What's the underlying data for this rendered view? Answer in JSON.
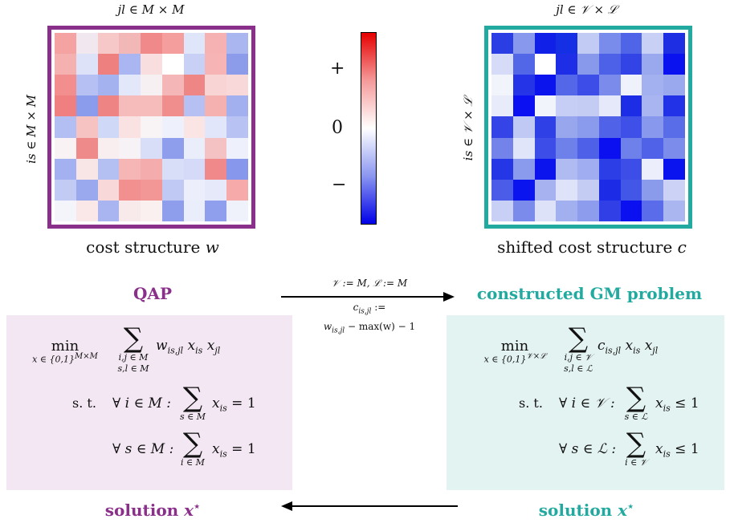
{
  "left_matrix": {
    "top_label": "jl ∈ M × M",
    "side_label": "is ∈ M × M",
    "caption_text": "cost structure ",
    "caption_var": "w",
    "frame_color": "#8a2f8a"
  },
  "right_matrix": {
    "top_label": "jl ∈ 𝒱 × ℒ",
    "side_label": "is ∈ 𝒱 × ℒ",
    "caption_text": "shifted cost structure ",
    "caption_var": "c",
    "frame_color": "#22aaa0"
  },
  "colorbar": {
    "plus": "+",
    "zero": "0",
    "minus": "−"
  },
  "qap": {
    "title": "QAP",
    "title_color": "#8a2f8a",
    "bg_color": "#f3e7f3",
    "min": "min",
    "min_sub": "x ∈ {0,1}",
    "min_sup": "M×M",
    "sum_sub1": "i,j ∈ M",
    "sum_sub2": "s,l ∈ M",
    "objective": "w",
    "obj_sub": "is,jl",
    "st": "s. t.",
    "c1_forall": "∀ i ∈ M :",
    "c1_sumsub": "s ∈ M",
    "c1_rhs": "= 1",
    "c2_forall": "∀ s ∈ M :",
    "c2_sumsub": "i ∈ M",
    "c2_rhs": "= 1"
  },
  "gm": {
    "title": "constructed GM problem",
    "title_color": "#22aaa0",
    "bg_color": "#e3f3f1",
    "min": "min",
    "min_sub": "x ∈ {0,1}",
    "min_sup": "𝒱×ℒ",
    "sum_sub1": "i,j ∈ 𝒱",
    "sum_sub2": "s,l ∈ ℒ",
    "objective": "c",
    "obj_sub": "is,jl",
    "st": "s. t.",
    "c1_forall": "∀ i ∈ 𝒱 :",
    "c1_sumsub": "s ∈ ℒ",
    "c1_rhs": "≤ 1",
    "c2_forall": "∀ s ∈ ℒ :",
    "c2_sumsub": "i ∈ 𝒱",
    "c2_rhs": "≤ 1"
  },
  "transform": {
    "line1": "𝒱 := M, ℒ := M",
    "line2": "c",
    "line2_sub": "is,jl",
    "line2_tail": " :=",
    "line3_var": "w",
    "line3_sub": "is,jl",
    "line3_tail": " − max(w) − 1"
  },
  "solutions": {
    "left": "solution ",
    "left_var": "x",
    "left_star": "⋆",
    "right": "solution ",
    "right_var": "x",
    "right_star": "⋆"
  },
  "left_cells": [
    "#f5a2a2",
    "#f0e8ee",
    "#f7c8c8",
    "#f2b7b7",
    "#f08a8a",
    "#f59e9e",
    "#e0e6fa",
    "#f6b2b2",
    "#aab6f0",
    "#f5b0b0",
    "#dde2f8",
    "#ee8080",
    "#a9b6f1",
    "#f8dede",
    "#ffffff",
    "#c8d0f5",
    "#f6b4b4",
    "#8c9ceb",
    "#f28e8e",
    "#b6c0f3",
    "#a5b2f0",
    "#e2e7fa",
    "#f6f0f3",
    "#f4b6b6",
    "#ee8686",
    "#f8d4d4",
    "#f8d8d8",
    "#f08080",
    "#8c9cec",
    "#ef8484",
    "#f6bcbc",
    "#f6bcbc",
    "#f08e8e",
    "#b6c0f3",
    "#f5b0b0",
    "#a3b0f0",
    "#b3bef2",
    "#f6c2c2",
    "#d0d8f7",
    "#fae2e2",
    "#f8f4f6",
    "#eef0fb",
    "#fae4e4",
    "#e2e6fa",
    "#b8c2f3",
    "#f8f2f4",
    "#ef8a8a",
    "#f8eef0",
    "#f6f2f5",
    "#d8def8",
    "#8e9dec",
    "#eaeefb",
    "#f4c2c2",
    "#eef1fb",
    "#a4b1f0",
    "#f8e6e6",
    "#b4bff2",
    "#f6b6b6",
    "#f4acac",
    "#d8ddf8",
    "#d4daf7",
    "#f08a8a",
    "#8797eb",
    "#c2cbf4",
    "#9aa8ee",
    "#f8d8d8",
    "#f29090",
    "#f29696",
    "#c0c9f4",
    "#eceffb",
    "#e6e9fa",
    "#f6aaaa",
    "#f4f5fb",
    "#fae8e8",
    "#a9b5f1",
    "#f8eaea",
    "#fbf0f0",
    "#8e9dec",
    "#eaeefb",
    "#8f9eed",
    "#f0f2fb"
  ],
  "right_cells": [
    "#2a3ee4",
    "#8898ec",
    "#1020e6",
    "#1530e4",
    "#c2cbf4",
    "#7a8ceb",
    "#5064e8",
    "#c8d0f5",
    "#1d2ee3",
    "#d6dcf8",
    "#5266e8",
    "#ffffff",
    "#1e2ee6",
    "#8899ec",
    "#4c60e8",
    "#3344e6",
    "#9aa8ee",
    "#0a12f0",
    "#f2f4fc",
    "#2434e6",
    "#0c14ee",
    "#5467e9",
    "#3c4ee7",
    "#7a8beb",
    "#f0f2fb",
    "#a4b1f0",
    "#9aa8ee",
    "#e8ebfa",
    "#0a10f2",
    "#f2f4fb",
    "#c6cef5",
    "#c4ccf4",
    "#e6e9fa",
    "#1d2de6",
    "#a9b5f1",
    "#2232e6",
    "#3444e6",
    "#c0c9f4",
    "#2e40e6",
    "#98a6ee",
    "#8a9aec",
    "#5063e8",
    "#3e50e7",
    "#8898ec",
    "#5a6de9",
    "#7383ea",
    "#e0e5f9",
    "#3c4ee7",
    "#6e80ea",
    "#4e60e8",
    "#0a10f0",
    "#6e80ea",
    "#5063e8",
    "#7b8ceb",
    "#2436e6",
    "#8a9aec",
    "#0c14ee",
    "#b0bbf2",
    "#a0adf0",
    "#2c3ee6",
    "#3c4ee7",
    "#eceffb",
    "#0a14ee",
    "#4a5ce8",
    "#0a14ee",
    "#a6b3f0",
    "#dfe3f9",
    "#c4ccf4",
    "#1c2ce6",
    "#4256e7",
    "#8b9bec",
    "#cbd2f6",
    "#c8d0f5",
    "#7a8beb",
    "#dde2f8",
    "#a3b0f0",
    "#8d9cec",
    "#3040e6",
    "#0a10f0",
    "#5a6ce9",
    "#aab6f0"
  ]
}
